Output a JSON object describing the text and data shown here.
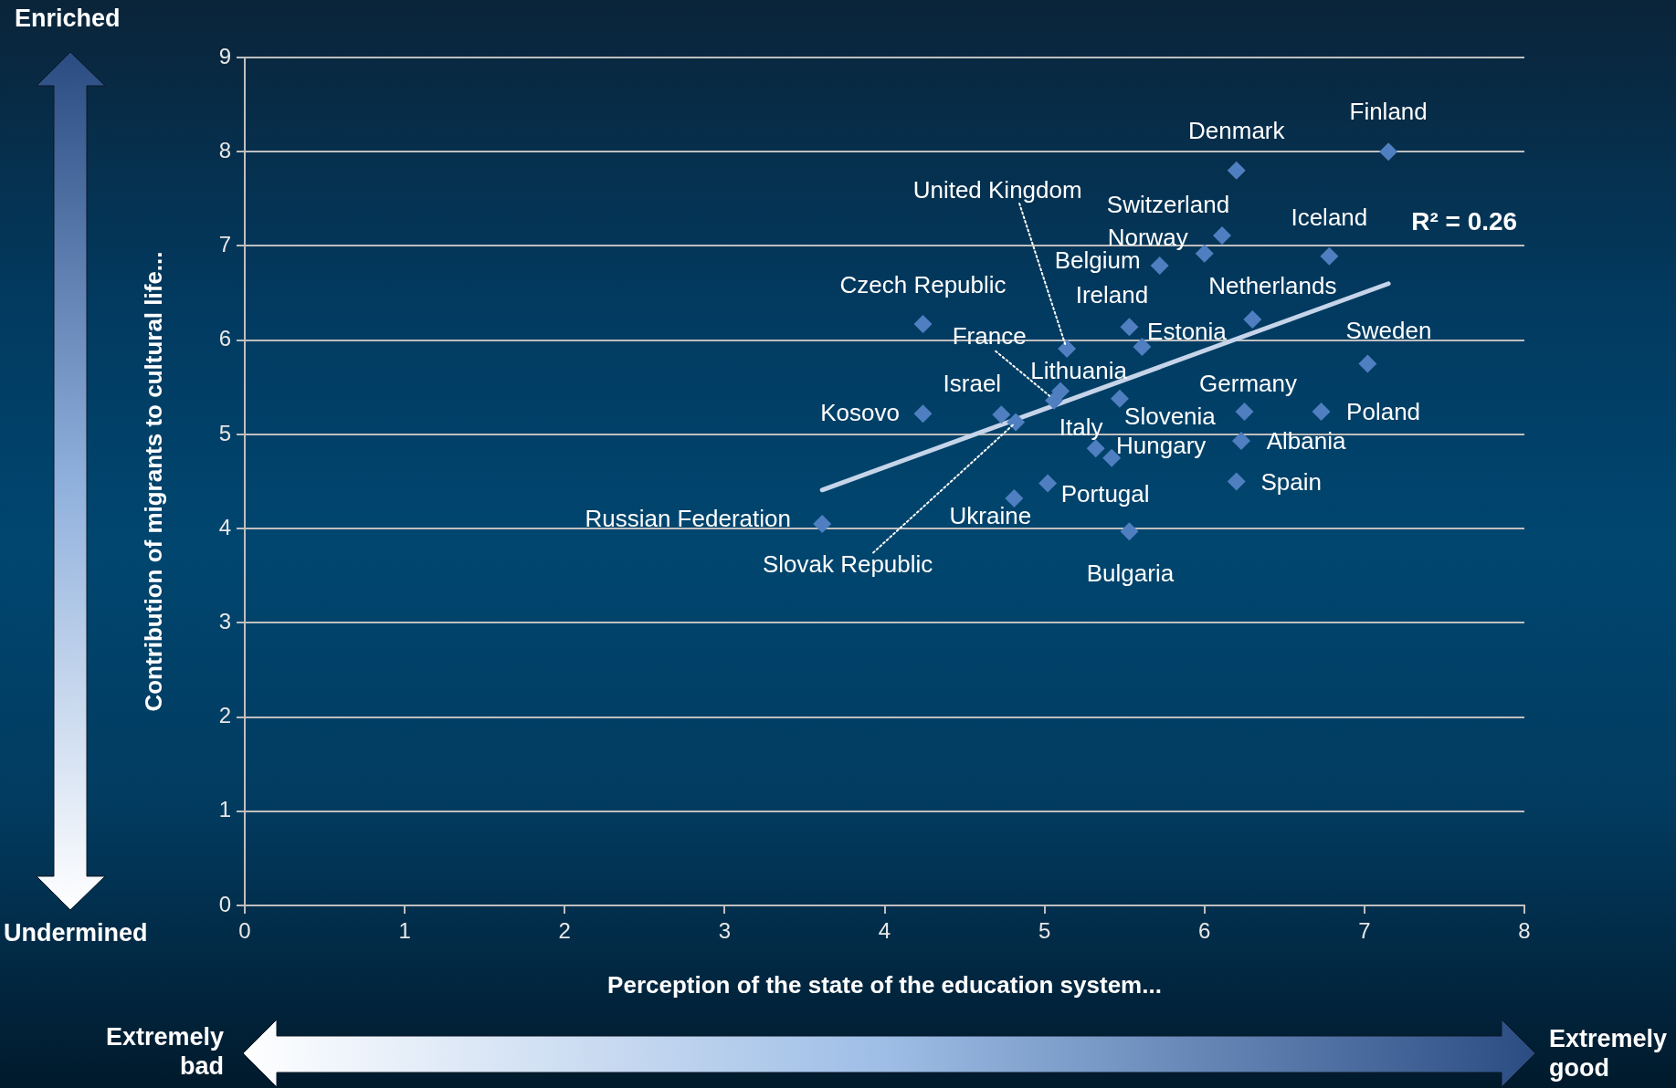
{
  "chart_data": {
    "type": "scatter",
    "xlabel": "Perception of the state of the education system...",
    "ylabel": "Contribution of migrants to cultural life...",
    "series": [
      {
        "type": "scatter",
        "color": "#4f7fc0",
        "x": [
          7.15,
          6.2,
          6.11,
          6.0,
          6.78,
          5.72,
          6.3,
          5.53,
          5.61,
          5.14,
          4.24,
          7.02,
          5.1,
          5.06,
          5.47,
          6.25,
          6.73,
          4.24,
          4.73,
          4.82,
          6.23,
          5.32,
          5.42,
          6.2,
          5.02,
          4.81,
          3.61,
          5.53
        ],
        "values": [
          8.0,
          7.8,
          7.11,
          6.92,
          6.89,
          6.79,
          6.22,
          6.14,
          5.93,
          5.91,
          6.17,
          5.75,
          5.46,
          5.36,
          5.38,
          5.24,
          5.24,
          5.22,
          5.21,
          5.13,
          4.93,
          4.85,
          4.75,
          4.5,
          4.48,
          4.32,
          4.05,
          3.97
        ]
      },
      {
        "type": "line",
        "color": "#c6d4ea",
        "marker": "none",
        "x": [
          3.61,
          7.15
        ],
        "values": [
          4.41,
          6.6
        ]
      }
    ],
    "marker": "diamond",
    "grid": "y",
    "xlim": [
      0,
      8
    ],
    "ylim": [
      0,
      9
    ],
    "xticks": [
      0,
      1,
      2,
      3,
      4,
      5,
      6,
      7,
      8
    ],
    "yticks": [
      0,
      1,
      2,
      3,
      4,
      5,
      6,
      7,
      8,
      9
    ],
    "annotations": [
      {
        "text": "Finland",
        "x": 7.15,
        "y": 8.0
      },
      {
        "text": "Denmark",
        "x": 6.2,
        "y": 7.8
      },
      {
        "text": "Switzerland",
        "x": 6.11,
        "y": 7.11
      },
      {
        "text": "Norway",
        "x": 6.0,
        "y": 6.92
      },
      {
        "text": "Iceland",
        "x": 6.78,
        "y": 6.89
      },
      {
        "text": "Belgium",
        "x": 5.72,
        "y": 6.79
      },
      {
        "text": "Netherlands",
        "x": 6.3,
        "y": 6.22
      },
      {
        "text": "Ireland",
        "x": 5.53,
        "y": 6.14
      },
      {
        "text": "Estonia",
        "x": 5.61,
        "y": 5.93
      },
      {
        "text": "United Kingdom",
        "x": 5.14,
        "y": 5.91
      },
      {
        "text": "Czech Republic",
        "x": 4.24,
        "y": 6.17
      },
      {
        "text": "Sweden",
        "x": 7.02,
        "y": 5.75
      },
      {
        "text": "Lithuania",
        "x": 5.1,
        "y": 5.46
      },
      {
        "text": "France",
        "x": 5.06,
        "y": 5.36
      },
      {
        "text": "Slovenia",
        "x": 5.47,
        "y": 5.38
      },
      {
        "text": "Germany",
        "x": 6.25,
        "y": 5.24
      },
      {
        "text": "Poland",
        "x": 6.73,
        "y": 5.24
      },
      {
        "text": "Kosovo",
        "x": 4.24,
        "y": 5.22
      },
      {
        "text": "Israel",
        "x": 4.73,
        "y": 5.21
      },
      {
        "text": "Slovak Republic",
        "x": 4.82,
        "y": 5.13
      },
      {
        "text": "Albania",
        "x": 6.23,
        "y": 4.93
      },
      {
        "text": "Italy",
        "x": 5.32,
        "y": 4.85
      },
      {
        "text": "Hungary",
        "x": 5.42,
        "y": 4.75
      },
      {
        "text": "Spain",
        "x": 6.2,
        "y": 4.5
      },
      {
        "text": "Portugal",
        "x": 5.02,
        "y": 4.48
      },
      {
        "text": "Ukraine",
        "x": 4.81,
        "y": 4.32
      },
      {
        "text": "Russian Federation",
        "x": 3.61,
        "y": 4.05
      },
      {
        "text": "Bulgaria",
        "x": 5.53,
        "y": 3.97
      },
      "R² = 0.26",
      "Enriched",
      "Undermined",
      "Extremely bad",
      "Extremely good"
    ]
  }
}
